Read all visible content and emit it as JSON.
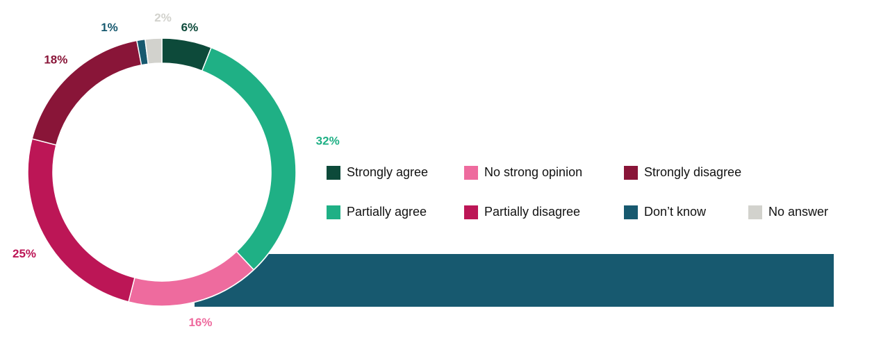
{
  "chart_data": {
    "type": "pie",
    "donut": true,
    "categories": [
      "Strongly agree",
      "Partially agree",
      "No strong opinion",
      "Partially disagree",
      "Strongly disagree",
      "Don’t know",
      "No answer"
    ],
    "values": [
      6,
      32,
      16,
      25,
      18,
      1,
      2
    ],
    "data_labels": [
      "6%",
      "32%",
      "16%",
      "25%",
      "18%",
      "1%",
      "2%"
    ],
    "colors": [
      "#0d4a3a",
      "#1fb085",
      "#ee6b9e",
      "#bc1656",
      "#891538",
      "#17596f",
      "#d2d2cd"
    ],
    "legend_placement": "right",
    "band_color": "#17596f"
  }
}
